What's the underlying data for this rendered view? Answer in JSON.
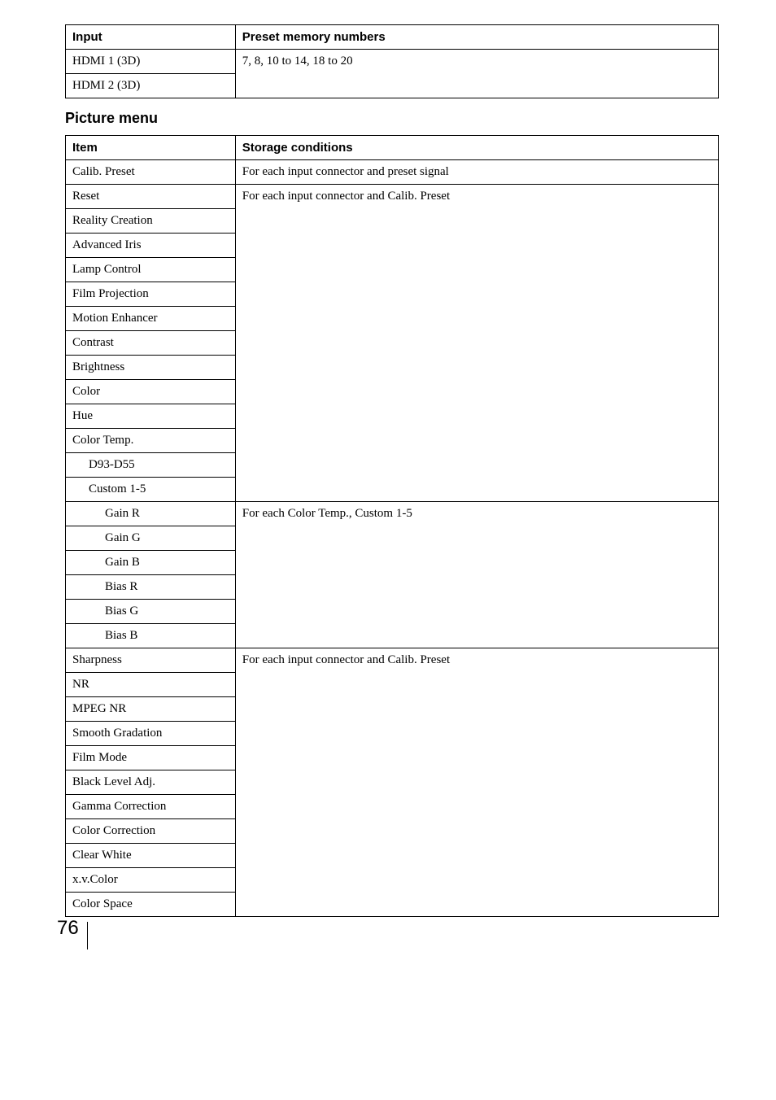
{
  "table1": {
    "headers": {
      "col1": "Input",
      "col2": "Preset memory numbers"
    },
    "rows": [
      {
        "col1": "HDMI 1 (3D)",
        "col2": "7, 8, 10 to 14, 18 to 20"
      },
      {
        "col1": "HDMI 2 (3D)",
        "col2": ""
      }
    ]
  },
  "section_title": "Picture menu",
  "table2": {
    "headers": {
      "col1": "Item",
      "col2": "Storage conditions"
    },
    "groups": [
      {
        "storage": "For each input connector and preset signal",
        "items": [
          "Calib. Preset"
        ],
        "indent": [
          0
        ]
      },
      {
        "storage": "For each input connector and Calib. Preset",
        "items": [
          "Reset",
          "Reality Creation",
          "Advanced Iris",
          "Lamp Control",
          "Film Projection",
          "Motion Enhancer",
          "Contrast",
          "Brightness",
          "Color",
          "Hue",
          "Color Temp.",
          "D93-D55",
          "Custom 1-5"
        ],
        "indent": [
          0,
          0,
          0,
          0,
          0,
          0,
          0,
          0,
          0,
          0,
          0,
          1,
          1
        ]
      },
      {
        "storage": "For each Color Temp., Custom 1-5",
        "items": [
          "Gain R",
          "Gain G",
          "Gain B",
          "Bias R",
          "Bias G",
          "Bias B"
        ],
        "indent": [
          2,
          2,
          2,
          2,
          2,
          2
        ]
      },
      {
        "storage": "For each input connector and Calib. Preset",
        "items": [
          "Sharpness",
          "NR",
          "MPEG NR",
          "Smooth Gradation",
          "Film Mode",
          "Black Level Adj.",
          "Gamma Correction",
          "Color Correction",
          "Clear White",
          "x.v.Color",
          "Color Space"
        ],
        "indent": [
          0,
          0,
          0,
          0,
          0,
          0,
          0,
          0,
          0,
          0,
          0
        ]
      }
    ]
  },
  "page_number": "76"
}
